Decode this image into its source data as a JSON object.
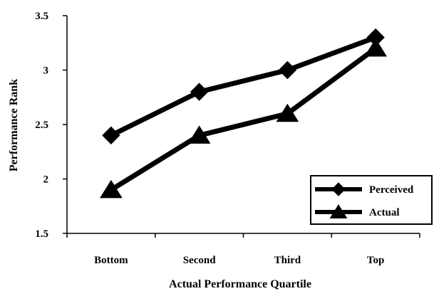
{
  "chart_data": {
    "type": "line",
    "categories": [
      "Bottom",
      "Second",
      "Third",
      "Top"
    ],
    "series": [
      {
        "name": "Perceived",
        "marker": "diamond",
        "values": [
          2.4,
          2.8,
          3.0,
          3.3
        ]
      },
      {
        "name": "Actual",
        "marker": "triangle",
        "values": [
          1.9,
          2.4,
          2.6,
          3.2
        ]
      }
    ],
    "title": "",
    "xlabel": "Actual Performance Quartile",
    "ylabel": "Performance Rank",
    "ylim": [
      1.5,
      3.5
    ],
    "yticks": [
      "1.5",
      "2",
      "2.5",
      "3",
      "3.5"
    ],
    "grid": false,
    "legend_position": "bottom-right",
    "line_color": "#000000"
  }
}
